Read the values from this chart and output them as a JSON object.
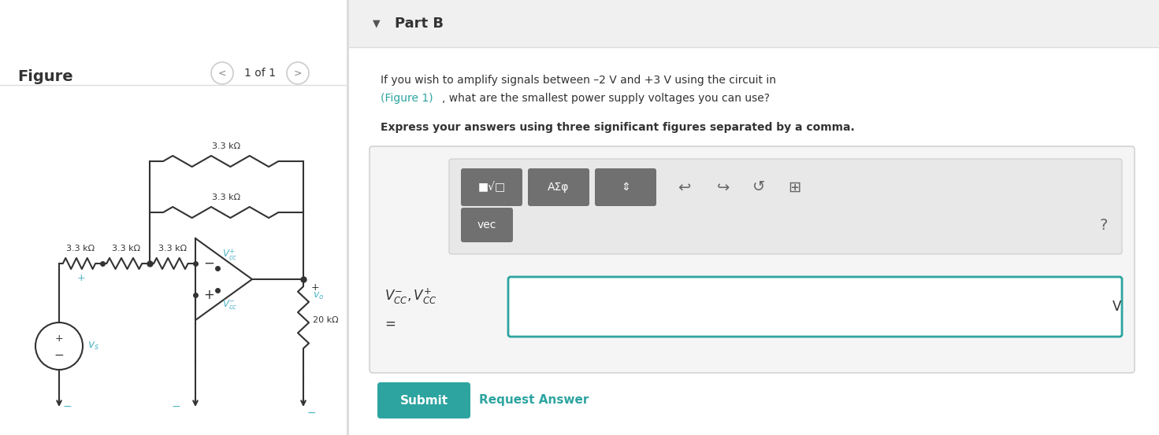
{
  "page_bg": "#f5f5f5",
  "left_bg": "#ffffff",
  "right_header_bg": "#eeeeee",
  "right_body_bg": "#ffffff",
  "divider_color": "#dddddd",
  "text_color": "#333333",
  "blue_color": "#4db3c8",
  "link_color": "#2da4a0",
  "submit_color": "#2da4a0",
  "toolbar_bg": "#707070",
  "figure_label": "Figure",
  "nav_text": "1 of 1",
  "part_b_title": "Part B",
  "body_line1": "If you wish to amplify signals between –2 V and +3 V using the circuit in",
  "body_line2": "(Figure 1), what are the smallest power supply voltages you can use?",
  "bold_line": "Express your answers using three significant figures separated by a comma.",
  "submit_text": "Submit",
  "request_text": "Request Answer",
  "res_label": "3.3 kΩ",
  "load_label": "20 kΩ",
  "vcc_plus": "V_{cc}^{+}",
  "vcc_minus": "V_{cc}^{-}",
  "vs_label": "v_s",
  "vo_label": "v_o",
  "unit_label": "V",
  "q_mark": "?"
}
